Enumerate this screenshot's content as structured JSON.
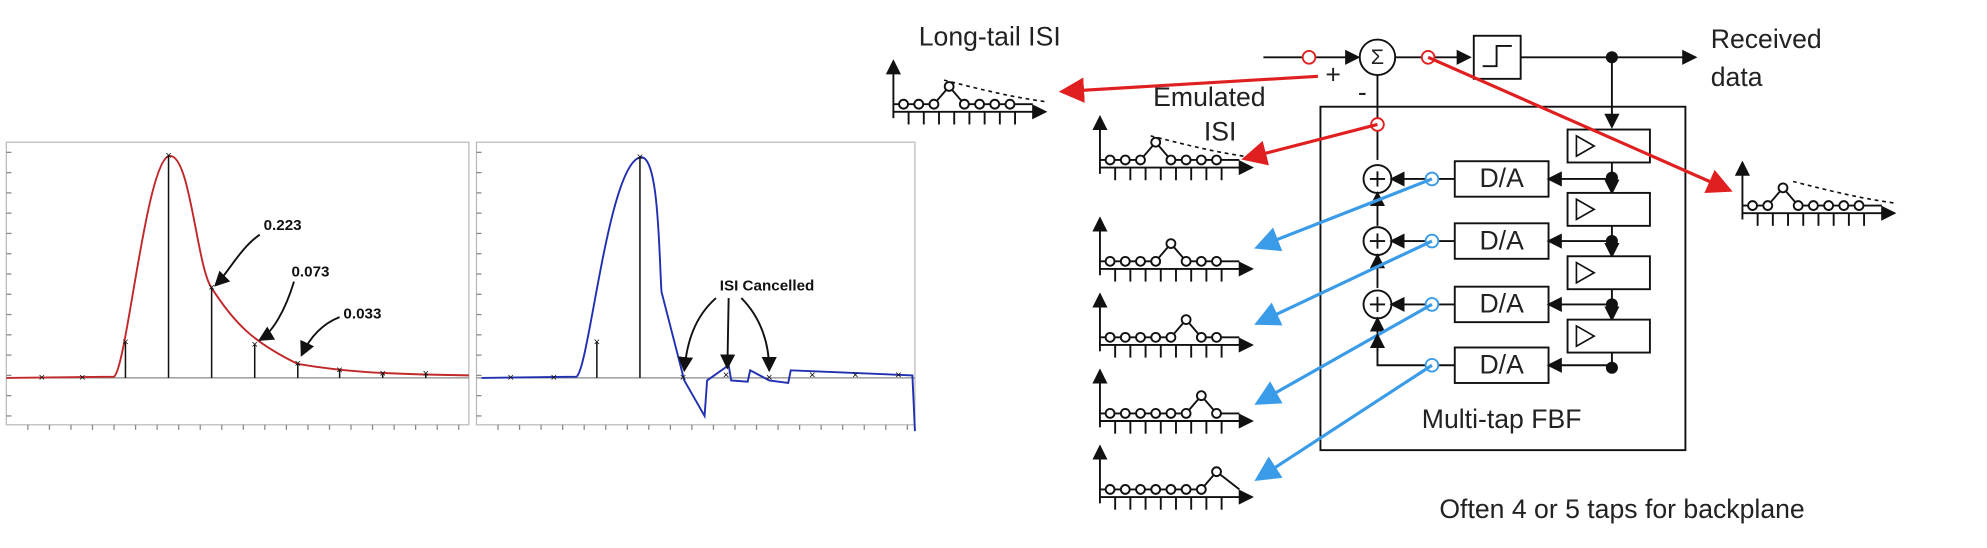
{
  "left_plot": {
    "annotations": [
      "0.223",
      "0.073",
      "0.033"
    ]
  },
  "middle_plot": {
    "annotation": "ISI Cancelled"
  },
  "diagram": {
    "long_tail_label": "Long-tail ISI",
    "emulated_label": [
      "Emulated",
      "ISI"
    ],
    "received_label": [
      "Received",
      "data"
    ],
    "sum_symbol": "Σ",
    "plus_sign": "+",
    "minus_sign": "-",
    "dac_labels": [
      "D/A",
      "D/A",
      "D/A",
      "D/A"
    ],
    "block_label": "Multi-tap FBF",
    "caption": "Often 4 or 5 taps for backplane"
  }
}
